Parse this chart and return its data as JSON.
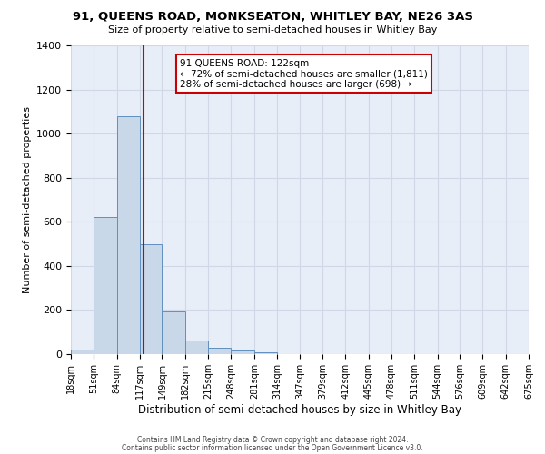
{
  "title": "91, QUEENS ROAD, MONKSEATON, WHITLEY BAY, NE26 3AS",
  "subtitle": "Size of property relative to semi-detached houses in Whitley Bay",
  "xlabel": "Distribution of semi-detached houses by size in Whitley Bay",
  "ylabel": "Number of semi-detached properties",
  "bin_edges": [
    18,
    51,
    84,
    117,
    149,
    182,
    215,
    248,
    281,
    314,
    347,
    379,
    412,
    445,
    478,
    511,
    544,
    576,
    609,
    642,
    675
  ],
  "bin_labels": [
    "18sqm",
    "51sqm",
    "84sqm",
    "117sqm",
    "149sqm",
    "182sqm",
    "215sqm",
    "248sqm",
    "281sqm",
    "314sqm",
    "347sqm",
    "379sqm",
    "412sqm",
    "445sqm",
    "478sqm",
    "511sqm",
    "544sqm",
    "576sqm",
    "609sqm",
    "642sqm",
    "675sqm"
  ],
  "bar_heights": [
    20,
    620,
    1080,
    500,
    195,
    60,
    28,
    15,
    8,
    0,
    0,
    0,
    0,
    0,
    0,
    0,
    0,
    0,
    0,
    0
  ],
  "bar_color": "#c8d8e8",
  "bar_edge_color": "#6090c0",
  "vline_x": 122,
  "vline_color": "#cc0000",
  "ylim": [
    0,
    1400
  ],
  "yticks": [
    0,
    200,
    400,
    600,
    800,
    1000,
    1200,
    1400
  ],
  "annotation_text_line1": "91 QUEENS ROAD: 122sqm",
  "annotation_text_line2": "← 72% of semi-detached houses are smaller (1,811)",
  "annotation_text_line3": "28% of semi-detached houses are larger (698) →",
  "annotation_box_color": "#ffffff",
  "annotation_box_edge": "#cc0000",
  "grid_color": "#d0d8e8",
  "bg_color": "#e8eef8",
  "footnote1": "Contains HM Land Registry data © Crown copyright and database right 2024.",
  "footnote2": "Contains public sector information licensed under the Open Government Licence v3.0."
}
